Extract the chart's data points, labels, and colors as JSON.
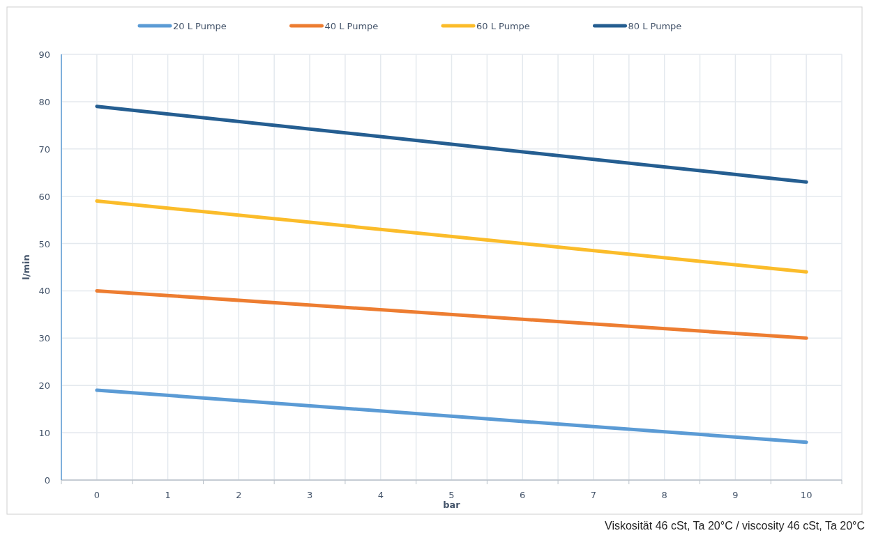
{
  "chart_data": {
    "type": "line",
    "xlabel": "bar",
    "ylabel": "l/min",
    "x": [
      0,
      10
    ],
    "series": [
      {
        "name": "20 L Pumpe",
        "color": "#5b9bd5",
        "values": [
          19,
          8
        ]
      },
      {
        "name": "40 L Pumpe",
        "color": "#ed7d31",
        "values": [
          40,
          30
        ]
      },
      {
        "name": "60 L Pumpe",
        "color": "#fbbc2a",
        "values": [
          59,
          44
        ]
      },
      {
        "name": "80 L Pumpe",
        "color": "#255e91",
        "values": [
          79,
          63
        ]
      }
    ],
    "xlim": [
      -0.5,
      10.5
    ],
    "xticks": [
      {
        "value": -0.5,
        "label": null
      },
      0,
      {
        "value": 0.5,
        "label": null
      },
      1,
      {
        "value": 1.5,
        "label": null
      },
      2,
      {
        "value": 2.5,
        "label": null
      },
      3,
      {
        "value": 3.5,
        "label": null
      },
      4,
      {
        "value": 4.5,
        "label": null
      },
      5,
      {
        "value": 5.5,
        "label": null
      },
      6,
      {
        "value": 6.5,
        "label": null
      },
      7,
      {
        "value": 7.5,
        "label": null
      },
      8,
      {
        "value": 8.5,
        "label": null
      },
      9,
      {
        "value": 9.5,
        "label": null
      },
      10,
      {
        "value": 10.5,
        "label": null
      }
    ],
    "ylim": [
      0,
      90
    ],
    "yticks": [
      0,
      10,
      20,
      30,
      40,
      50,
      60,
      70,
      80,
      90
    ],
    "grid": true,
    "legend": "top",
    "marker": "none",
    "line_style": "solid",
    "annotations": [
      "Viskosität 46 cSt, Ta 20°C / viscosity  46 cSt, Ta 20°C"
    ]
  }
}
